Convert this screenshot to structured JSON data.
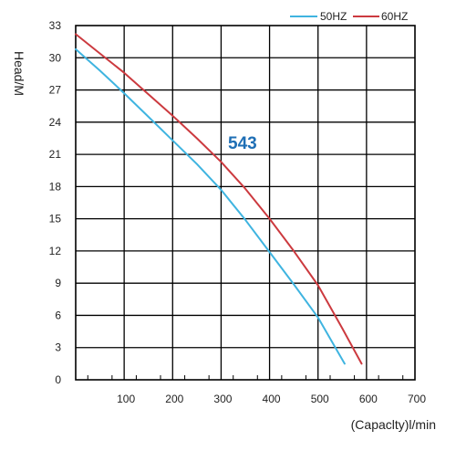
{
  "chart_data": {
    "type": "line",
    "title": "",
    "annotation": "543",
    "xlabel": "(Capaclty)l/min",
    "ylabel": "Head/M",
    "xlim": [
      0,
      700
    ],
    "ylim": [
      0,
      33
    ],
    "xticks": [
      100,
      200,
      300,
      400,
      500,
      600,
      700
    ],
    "yticks": [
      0,
      3,
      6,
      9,
      12,
      15,
      18,
      21,
      24,
      27,
      30,
      33
    ],
    "grid": true,
    "legend": "top-right",
    "series": [
      {
        "name": "50HZ",
        "color": "#3fb4e0",
        "x": [
          0,
          50,
          100,
          150,
          200,
          250,
          300,
          350,
          400,
          450,
          500,
          555
        ],
        "y": [
          30.8,
          28.8,
          26.7,
          24.5,
          22.3,
          20.1,
          17.7,
          14.9,
          11.9,
          8.9,
          5.8,
          1.5
        ]
      },
      {
        "name": "60HZ",
        "color": "#cc3a3f",
        "x": [
          0,
          50,
          100,
          150,
          200,
          250,
          300,
          350,
          400,
          450,
          500,
          550,
          590
        ],
        "y": [
          32.2,
          30.4,
          28.6,
          26.6,
          24.6,
          22.5,
          20.3,
          17.8,
          15.0,
          12.0,
          8.8,
          4.8,
          1.5
        ]
      }
    ]
  }
}
